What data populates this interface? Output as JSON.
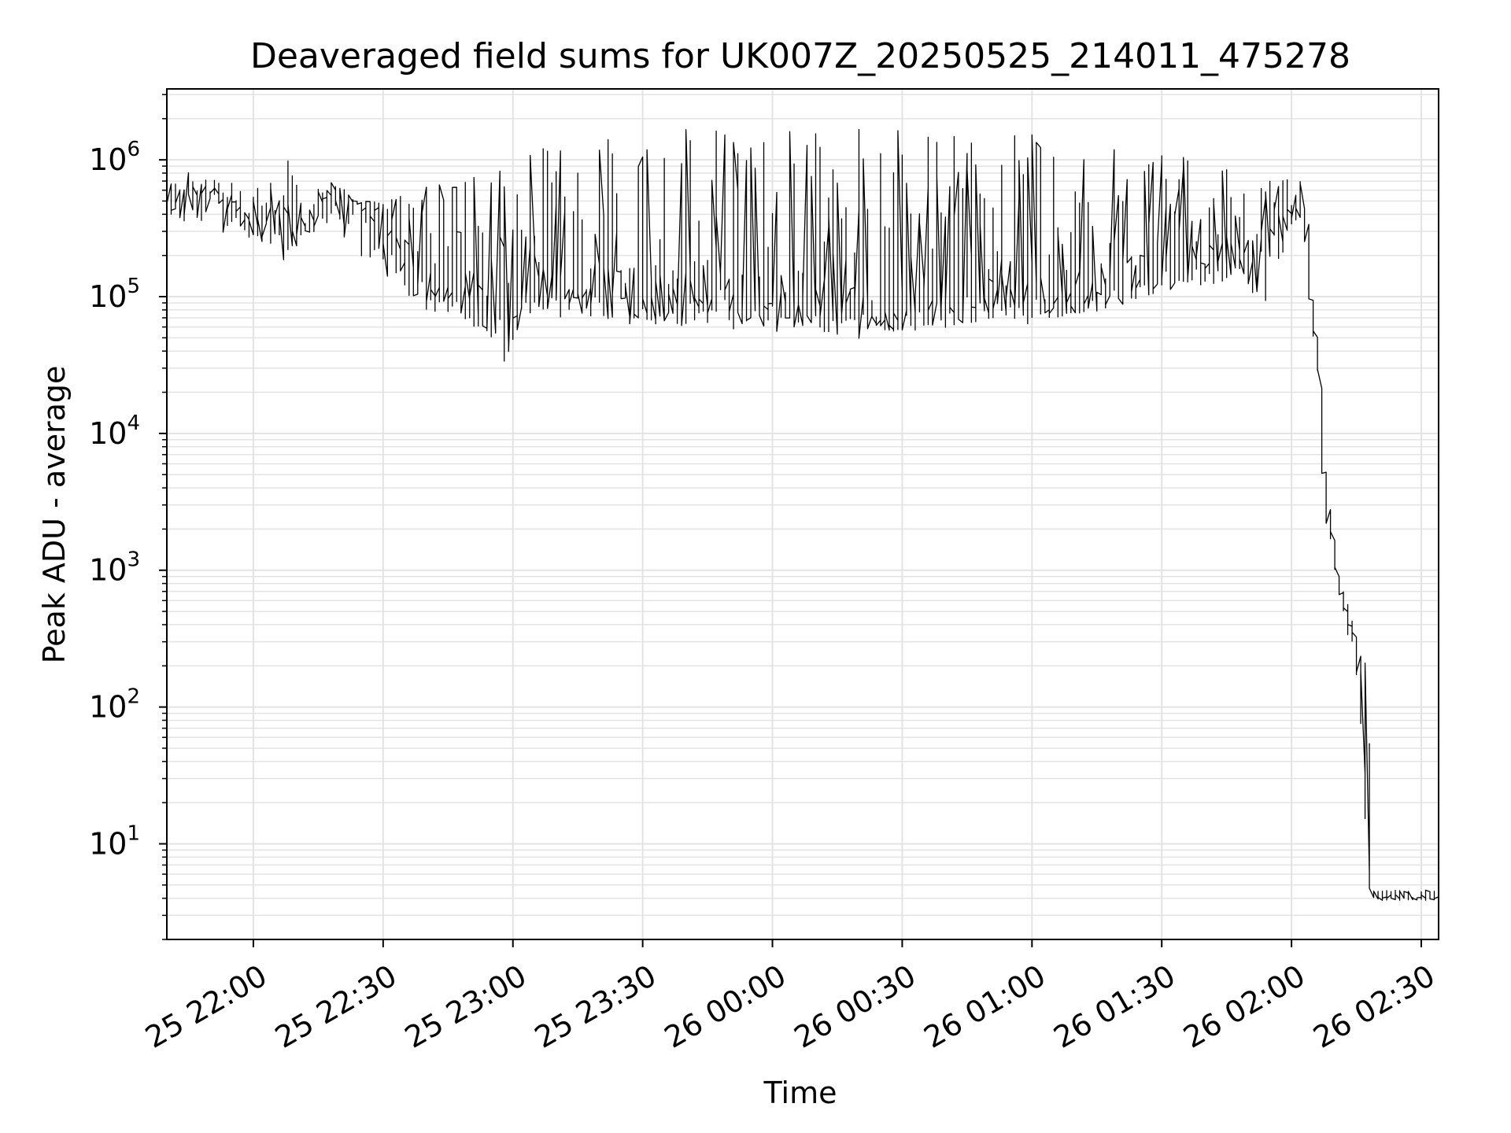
{
  "chart_data": {
    "type": "line",
    "title": "Deaveraged field sums for UK007Z_20250525_214011_475278",
    "xlabel": "Time",
    "ylabel": "Peak ADU - average",
    "yscale": "log",
    "ylim": [
      2,
      3300000
    ],
    "xlim": [
      "2025-05-25 21:40",
      "2025-05-26 02:34"
    ],
    "grid": true,
    "line_color": "#000000",
    "grid_color": "#e3e3e3",
    "x_ticks": [
      {
        "value": "2025-05-25 22:00",
        "label": "25 22:00"
      },
      {
        "value": "2025-05-25 22:30",
        "label": "25 22:30"
      },
      {
        "value": "2025-05-25 23:00",
        "label": "25 23:00"
      },
      {
        "value": "2025-05-25 23:30",
        "label": "25 23:30"
      },
      {
        "value": "2025-05-26 00:00",
        "label": "26 00:00"
      },
      {
        "value": "2025-05-26 00:30",
        "label": "26 00:30"
      },
      {
        "value": "2025-05-26 01:00",
        "label": "26 01:00"
      },
      {
        "value": "2025-05-26 01:30",
        "label": "26 01:30"
      },
      {
        "value": "2025-05-26 02:00",
        "label": "26 02:00"
      },
      {
        "value": "2025-05-26 02:30",
        "label": "26 02:30"
      }
    ],
    "y_ticks": [
      {
        "value": 10,
        "base": "10",
        "exp": "1"
      },
      {
        "value": 100,
        "base": "10",
        "exp": "2"
      },
      {
        "value": 1000,
        "base": "10",
        "exp": "3"
      },
      {
        "value": 10000,
        "base": "10",
        "exp": "4"
      },
      {
        "value": 100000,
        "base": "10",
        "exp": "5"
      },
      {
        "value": 1000000,
        "base": "10",
        "exp": "6"
      }
    ],
    "series": [
      {
        "x": [
          "2025-05-25 21:40",
          "2025-05-25 21:45",
          "2025-05-25 21:50",
          "2025-05-25 21:55",
          "2025-05-25 22:00",
          "2025-05-25 22:05",
          "2025-05-25 22:08",
          "2025-05-25 22:12",
          "2025-05-25 22:15",
          "2025-05-25 22:20",
          "2025-05-25 22:25",
          "2025-05-25 22:30",
          "2025-05-25 22:35",
          "2025-05-25 22:40",
          "2025-05-25 22:45",
          "2025-05-25 22:50",
          "2025-05-25 22:55",
          "2025-05-25 22:59",
          "2025-05-25 23:05",
          "2025-05-25 23:10",
          "2025-05-25 23:20",
          "2025-05-25 23:30",
          "2025-05-25 23:40",
          "2025-05-25 23:50",
          "2025-05-26 00:00",
          "2025-05-26 00:10",
          "2025-05-26 00:15",
          "2025-05-26 00:20",
          "2025-05-26 00:30",
          "2025-05-26 00:40",
          "2025-05-26 00:50",
          "2025-05-26 01:00",
          "2025-05-26 01:10",
          "2025-05-26 01:20",
          "2025-05-26 01:30",
          "2025-05-26 01:40",
          "2025-05-26 01:45",
          "2025-05-26 01:50",
          "2025-05-26 01:55",
          "2025-05-26 02:00",
          "2025-05-26 02:03",
          "2025-05-26 02:04",
          "2025-05-26 02:05",
          "2025-05-26 02:07",
          "2025-05-26 02:08",
          "2025-05-26 02:10",
          "2025-05-26 02:11",
          "2025-05-26 02:12",
          "2025-05-26 02:14",
          "2025-05-26 02:16",
          "2025-05-26 02:18",
          "2025-05-26 02:19",
          "2025-05-26 02:20",
          "2025-05-26 02:34"
        ],
        "y": [
          400000,
          600000,
          550000,
          500000,
          350000,
          400000,
          450000,
          300000,
          400000,
          600000,
          450000,
          300000,
          200000,
          150000,
          120000,
          110000,
          100000,
          50000,
          150000,
          120000,
          110000,
          100000,
          100000,
          95000,
          90000,
          95000,
          80000,
          75000,
          80000,
          85000,
          90000,
          95000,
          110000,
          130000,
          150000,
          180000,
          200000,
          220000,
          300000,
          500000,
          450000,
          300000,
          100000,
          30000,
          5000,
          1500,
          1000,
          700,
          400,
          200,
          150,
          4,
          4,
          4
        ],
        "y_high": [
          700000,
          900000,
          800000,
          700000,
          600000,
          700000,
          1500000,
          600000,
          650000,
          700000,
          500000,
          500000,
          600000,
          700000,
          800000,
          900000,
          1000000,
          1000000,
          1200000,
          1300000,
          1500000,
          1600000,
          1700000,
          1700000,
          1700000,
          1700000,
          1700000,
          1700000,
          1650000,
          1600000,
          1600000,
          1550000,
          1450000,
          1350000,
          1200000,
          1000000,
          900000,
          800000,
          700000,
          800000,
          900000,
          500000,
          150000,
          40000,
          6000,
          1800,
          1200,
          800,
          500,
          250,
          160,
          4.6,
          4.6,
          4.6
        ],
        "y_low": [
          250000,
          300000,
          300000,
          280000,
          260000,
          220000,
          130000,
          300000,
          250000,
          200000,
          170000,
          130000,
          100000,
          80000,
          70000,
          60000,
          50000,
          42000,
          80000,
          70000,
          70000,
          65000,
          60000,
          60000,
          60000,
          60000,
          50000,
          48000,
          55000,
          60000,
          65000,
          70000,
          75000,
          80000,
          100000,
          120000,
          130000,
          100000,
          85000,
          300000,
          400000,
          200000,
          80000,
          20000,
          3000,
          1200,
          800,
          500,
          300,
          150,
          4,
          3.8,
          3.8,
          3.8
        ]
      }
    ]
  }
}
